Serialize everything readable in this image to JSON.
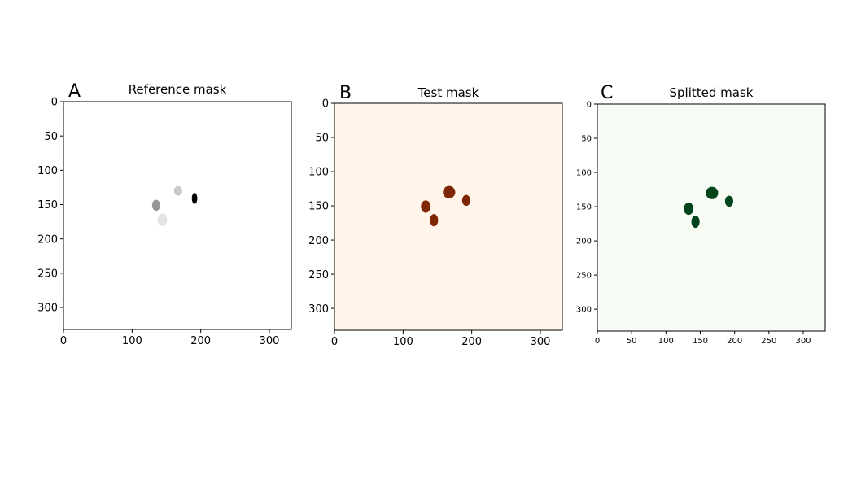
{
  "chart_data": [
    {
      "type": "heatmap",
      "panel_letter": "A",
      "title": "Reference mask",
      "xlabel": "",
      "ylabel": "",
      "xlim": [
        0,
        332
      ],
      "ylim": [
        332,
        0
      ],
      "x_ticks": [
        0,
        100,
        200,
        300
      ],
      "y_ticks": [
        0,
        50,
        100,
        150,
        200,
        250,
        300
      ],
      "grid": false,
      "background_color": "#ffffff",
      "blobs": [
        {
          "cx": 167,
          "cy": 130,
          "rx": 6,
          "ry": 7,
          "color": "#c8c8c8"
        },
        {
          "cx": 191,
          "cy": 141,
          "rx": 4,
          "ry": 8,
          "color": "#000000"
        },
        {
          "cx": 135,
          "cy": 151,
          "rx": 6,
          "ry": 8,
          "color": "#969696"
        },
        {
          "cx": 144,
          "cy": 172,
          "rx": 7,
          "ry": 9,
          "color": "#e4e4e4"
        }
      ]
    },
    {
      "type": "heatmap",
      "panel_letter": "B",
      "title": "Test mask",
      "xlabel": "",
      "ylabel": "",
      "xlim": [
        0,
        332
      ],
      "ylim": [
        332,
        0
      ],
      "x_ticks": [
        0,
        100,
        200,
        300
      ],
      "y_ticks": [
        0,
        50,
        100,
        150,
        200,
        250,
        300
      ],
      "grid": false,
      "background_color": "#fff5eb",
      "blobs": [
        {
          "cx": 167,
          "cy": 130,
          "rx": 9,
          "ry": 9,
          "color": "#7f2704"
        },
        {
          "cx": 192,
          "cy": 142,
          "rx": 6,
          "ry": 8,
          "color": "#7f2704"
        },
        {
          "cx": 133,
          "cy": 151,
          "rx": 7,
          "ry": 9,
          "color": "#7f2704"
        },
        {
          "cx": 145,
          "cy": 171,
          "rx": 6,
          "ry": 9,
          "color": "#7f2704"
        }
      ]
    },
    {
      "type": "heatmap",
      "panel_letter": "C",
      "title": "Splitted mask",
      "xlabel": "",
      "ylabel": "",
      "xlim": [
        0,
        332
      ],
      "ylim": [
        332,
        0
      ],
      "x_ticks": [
        0,
        50,
        100,
        150,
        200,
        250,
        300
      ],
      "y_ticks": [
        0,
        50,
        100,
        150,
        200,
        250,
        300
      ],
      "grid": false,
      "background_color": "#f7fcf5",
      "blobs": [
        {
          "cx": 167,
          "cy": 130,
          "rx": 9,
          "ry": 9,
          "color": "#00441b"
        },
        {
          "cx": 192,
          "cy": 142,
          "rx": 6,
          "ry": 8,
          "color": "#00441b"
        },
        {
          "cx": 133,
          "cy": 153,
          "rx": 7,
          "ry": 9,
          "color": "#00441b"
        },
        {
          "cx": 143,
          "cy": 172,
          "rx": 6,
          "ry": 9,
          "color": "#00441b"
        }
      ]
    }
  ]
}
